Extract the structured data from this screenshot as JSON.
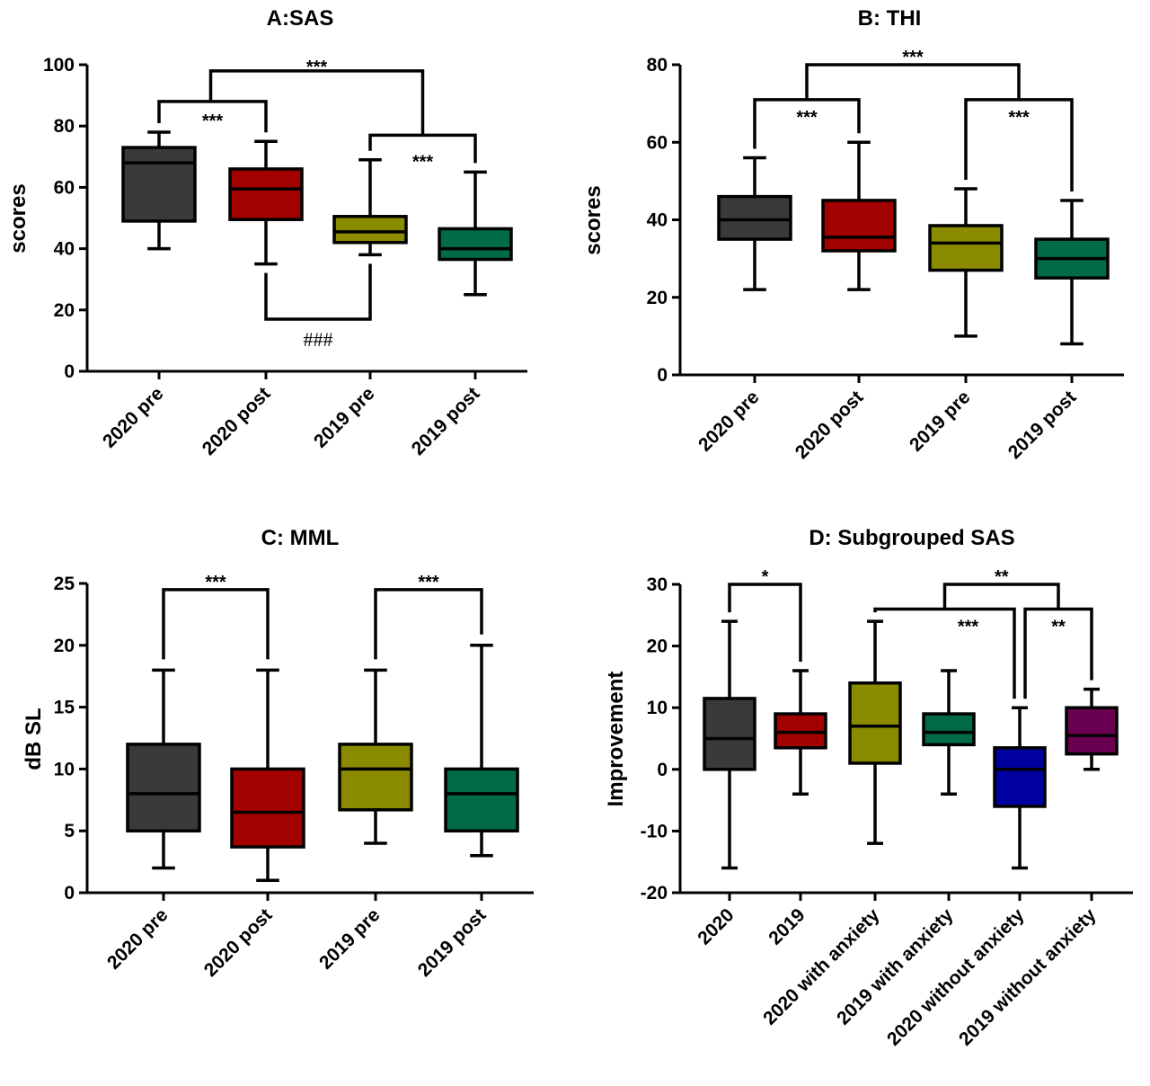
{
  "chart_data": [
    {
      "type": "boxplot",
      "title": "A:SAS",
      "ylabel": "scores",
      "ylim": [
        0,
        100
      ],
      "yticks": [
        0,
        20,
        40,
        60,
        80,
        100
      ],
      "categories": [
        "2020 pre",
        "2020 post",
        "2019 pre",
        "2019 post"
      ],
      "boxes": [
        {
          "min": 40,
          "q1": 49,
          "median": 68,
          "q3": 73,
          "max": 78,
          "color": "#3a3a3a"
        },
        {
          "min": 35,
          "q1": 49.5,
          "median": 59.5,
          "q3": 66,
          "max": 75,
          "color": "#a30000"
        },
        {
          "min": 38,
          "q1": 42,
          "median": 45.5,
          "q3": 50.5,
          "max": 69,
          "color": "#8b8b00"
        },
        {
          "min": 25,
          "q1": 36.5,
          "median": 40,
          "q3": 46.5,
          "max": 65,
          "color": "#006b45"
        }
      ],
      "annotations": [
        {
          "label": "***",
          "from": 0,
          "to": 1,
          "level": 88,
          "anchor_from": 0,
          "anchor_to": 1,
          "text_below": true
        },
        {
          "label": "***",
          "from": 2,
          "to": 3,
          "level": 77,
          "text_below": true
        },
        {
          "label": "***",
          "from": 0.5,
          "to": 2.5,
          "level": 98,
          "anchor_from": 88,
          "anchor_to": 77
        },
        {
          "label": "###",
          "from": 1,
          "to": 2,
          "level": 17,
          "down": true
        }
      ]
    },
    {
      "type": "boxplot",
      "title": "B: THI",
      "ylabel": "scores",
      "ylim": [
        0,
        80
      ],
      "yticks": [
        0,
        20,
        40,
        60,
        80
      ],
      "categories": [
        "2020 pre",
        "2020 post",
        "2019 pre",
        "2019 post"
      ],
      "boxes": [
        {
          "min": 22,
          "q1": 35,
          "median": 40,
          "q3": 46,
          "max": 56,
          "color": "#3a3a3a"
        },
        {
          "min": 22,
          "q1": 32,
          "median": 35.5,
          "q3": 45,
          "max": 60,
          "color": "#a30000"
        },
        {
          "min": 10,
          "q1": 27,
          "median": 34,
          "q3": 38.5,
          "max": 48,
          "color": "#8b8b00"
        },
        {
          "min": 8,
          "q1": 25,
          "median": 30,
          "q3": 35,
          "max": 45,
          "color": "#006b45"
        }
      ],
      "annotations": [
        {
          "label": "***",
          "from": 0,
          "to": 1,
          "level": 71
        },
        {
          "label": "***",
          "from": 2,
          "to": 3,
          "level": 71
        },
        {
          "label": "***",
          "from": 0.5,
          "to": 2.5,
          "level": 80
        }
      ]
    },
    {
      "type": "boxplot",
      "title": "C: MML",
      "ylabel": "dB SL",
      "ylim": [
        0,
        25
      ],
      "yticks": [
        0,
        5,
        10,
        15,
        20,
        25
      ],
      "categories": [
        "2020 pre",
        "2020 post",
        "2019 pre",
        "2019 post"
      ],
      "boxes": [
        {
          "min": 2,
          "q1": 5,
          "median": 8,
          "q3": 12,
          "max": 18,
          "color": "#3a3a3a"
        },
        {
          "min": 1,
          "q1": 3.7,
          "median": 6.5,
          "q3": 10,
          "max": 18,
          "color": "#a30000"
        },
        {
          "min": 4,
          "q1": 6.7,
          "median": 10,
          "q3": 12,
          "max": 18,
          "color": "#8b8b00"
        },
        {
          "min": 3,
          "q1": 5,
          "median": 8,
          "q3": 10,
          "max": 20,
          "color": "#006b45"
        }
      ],
      "annotations": [
        {
          "label": "***",
          "from": 0,
          "to": 1,
          "level": 24.5
        },
        {
          "label": "***",
          "from": 2,
          "to": 3,
          "level": 24.5
        }
      ]
    },
    {
      "type": "boxplot",
      "title": "D: Subgrouped SAS",
      "ylabel": "Improvement",
      "ylim": [
        -20,
        30
      ],
      "yticks": [
        -20,
        -10,
        0,
        10,
        20,
        30
      ],
      "categories": [
        "2020",
        "2019",
        "2020 with anxiety",
        "2019 with anxiety",
        "2020 without anxiety",
        "2019 without anxiety"
      ],
      "boxes": [
        {
          "min": -16,
          "q1": 0,
          "median": 5,
          "q3": 11.5,
          "max": 24,
          "color": "#3a3a3a"
        },
        {
          "min": -4,
          "q1": 3.5,
          "median": 6,
          "q3": 9,
          "max": 16,
          "color": "#a30000"
        },
        {
          "min": -12,
          "q1": 1,
          "median": 7,
          "q3": 14,
          "max": 24,
          "color": "#8b8b00"
        },
        {
          "min": -4,
          "q1": 4,
          "median": 6,
          "q3": 9,
          "max": 16,
          "color": "#006b45"
        },
        {
          "min": -16,
          "q1": -6,
          "median": 0,
          "q3": 3.5,
          "max": 10,
          "color": "#0000a0"
        },
        {
          "min": 0,
          "q1": 2.5,
          "median": 5.5,
          "q3": 10,
          "max": 13,
          "color": "#6a0050"
        }
      ],
      "annotations": [
        {
          "label": "*",
          "from": 0,
          "to": 1,
          "level": 30
        },
        {
          "label": "**",
          "from": 4,
          "to": 5,
          "level": 26
        },
        {
          "label": "***",
          "from": 2,
          "to": 4,
          "level": 26
        },
        {
          "label": "**",
          "from": 3,
          "to": 4.5,
          "level": 30
        }
      ]
    }
  ]
}
